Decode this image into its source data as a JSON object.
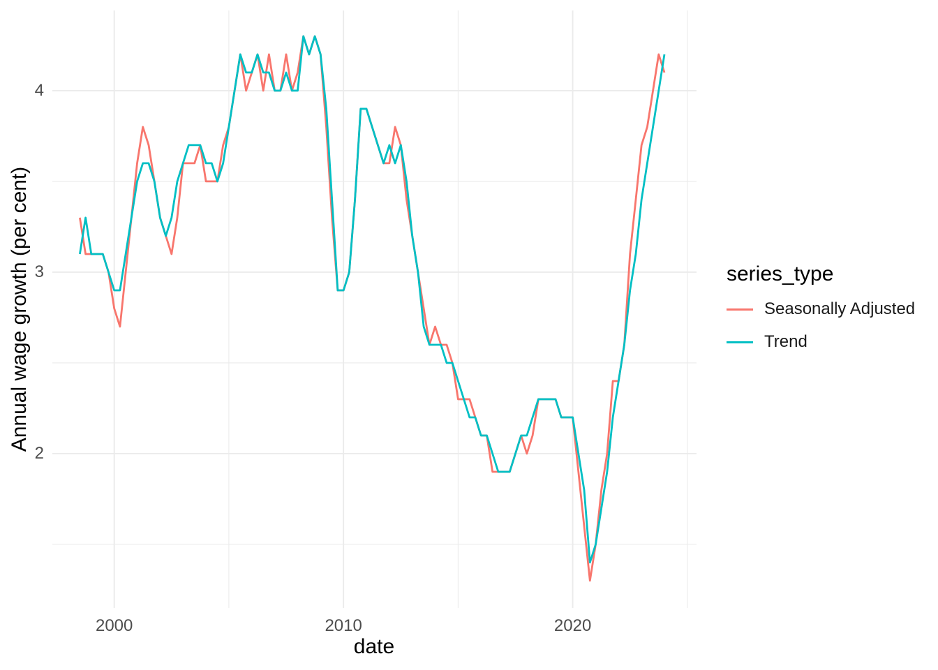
{
  "figure": {
    "background_color": "#ffffff",
    "gridline_color": "#ebebeb",
    "tick_label_color": "#4d4d4d",
    "legend": {
      "title": "series_type",
      "entries": [
        {
          "label": "Seasonally Adjusted",
          "color": "#F8766D"
        },
        {
          "label": "Trend",
          "color": "#00BFC4"
        }
      ]
    }
  },
  "chart_data": {
    "type": "line",
    "title": "",
    "xlabel": "date",
    "ylabel": "Annual wage growth (per cent)",
    "frequency": "quarterly",
    "start": "1998-Q3",
    "end": "2024-Q1",
    "x_ticks": [
      "2000",
      "2010",
      "2020"
    ],
    "x_tick_years": [
      2000,
      2010,
      2020
    ],
    "x_minor_gridlines": [
      2005,
      2015,
      2025
    ],
    "y_ticks": [
      "2",
      "3",
      "4"
    ],
    "y_tick_values": [
      2,
      3,
      4
    ],
    "y_minor_gridlines": [
      1.5,
      2.5,
      3.5
    ],
    "xlim": [
      1997.3,
      2025.4
    ],
    "ylim": [
      1.15,
      4.442
    ],
    "grid": "major and minor light-gray gridlines on white, no axis lines, no tick marks (ggplot minimal theme)",
    "legend_title": "series_type",
    "legend_position": "right",
    "series": [
      {
        "name": "Seasonally Adjusted",
        "color": "#F8766D",
        "values": [
          3.3,
          3.1,
          3.1,
          3.1,
          3.1,
          3.0,
          2.8,
          2.7,
          3.0,
          3.3,
          3.6,
          3.8,
          3.7,
          3.5,
          3.3,
          3.2,
          3.1,
          3.3,
          3.6,
          3.6,
          3.6,
          3.7,
          3.5,
          3.5,
          3.5,
          3.7,
          3.8,
          4.0,
          4.2,
          4.0,
          4.1,
          4.2,
          4.0,
          4.2,
          4.0,
          4.0,
          4.2,
          4.0,
          4.1,
          4.3,
          4.2,
          4.3,
          4.2,
          3.8,
          3.3,
          2.9,
          2.9,
          3.0,
          3.4,
          3.9,
          3.9,
          3.8,
          3.7,
          3.6,
          3.6,
          3.8,
          3.7,
          3.4,
          3.2,
          3.0,
          2.8,
          2.6,
          2.7,
          2.6,
          2.6,
          2.5,
          2.3,
          2.3,
          2.3,
          2.2,
          2.1,
          2.1,
          1.9,
          1.9,
          1.9,
          1.9,
          2.0,
          2.1,
          2.0,
          2.1,
          2.3,
          2.3,
          2.3,
          2.3,
          2.2,
          2.2,
          2.2,
          1.9,
          1.6,
          1.3,
          1.5,
          1.8,
          2.0,
          2.4,
          2.4,
          2.6,
          3.1,
          3.4,
          3.7,
          3.8,
          4.0,
          4.2,
          4.1
        ]
      },
      {
        "name": "Trend",
        "color": "#00BFC4",
        "values": [
          3.1,
          3.3,
          3.1,
          3.1,
          3.1,
          3.0,
          2.9,
          2.9,
          3.1,
          3.3,
          3.5,
          3.6,
          3.6,
          3.5,
          3.3,
          3.2,
          3.3,
          3.5,
          3.6,
          3.7,
          3.7,
          3.7,
          3.6,
          3.6,
          3.5,
          3.6,
          3.8,
          4.0,
          4.2,
          4.1,
          4.1,
          4.2,
          4.1,
          4.1,
          4.0,
          4.0,
          4.1,
          4.0,
          4.0,
          4.3,
          4.2,
          4.3,
          4.2,
          3.9,
          3.4,
          2.9,
          2.9,
          3.0,
          3.4,
          3.9,
          3.9,
          3.8,
          3.7,
          3.6,
          3.7,
          3.6,
          3.7,
          3.5,
          3.2,
          3.0,
          2.7,
          2.6,
          2.6,
          2.6,
          2.5,
          2.5,
          2.4,
          2.3,
          2.2,
          2.2,
          2.1,
          2.1,
          2.0,
          1.9,
          1.9,
          1.9,
          2.0,
          2.1,
          2.1,
          2.2,
          2.3,
          2.3,
          2.3,
          2.3,
          2.2,
          2.2,
          2.2,
          2.0,
          1.8,
          1.4,
          1.5,
          1.7,
          1.9,
          2.2,
          2.4,
          2.6,
          2.9,
          3.1,
          3.4,
          3.6,
          3.8,
          4.0,
          4.2
        ]
      }
    ]
  }
}
